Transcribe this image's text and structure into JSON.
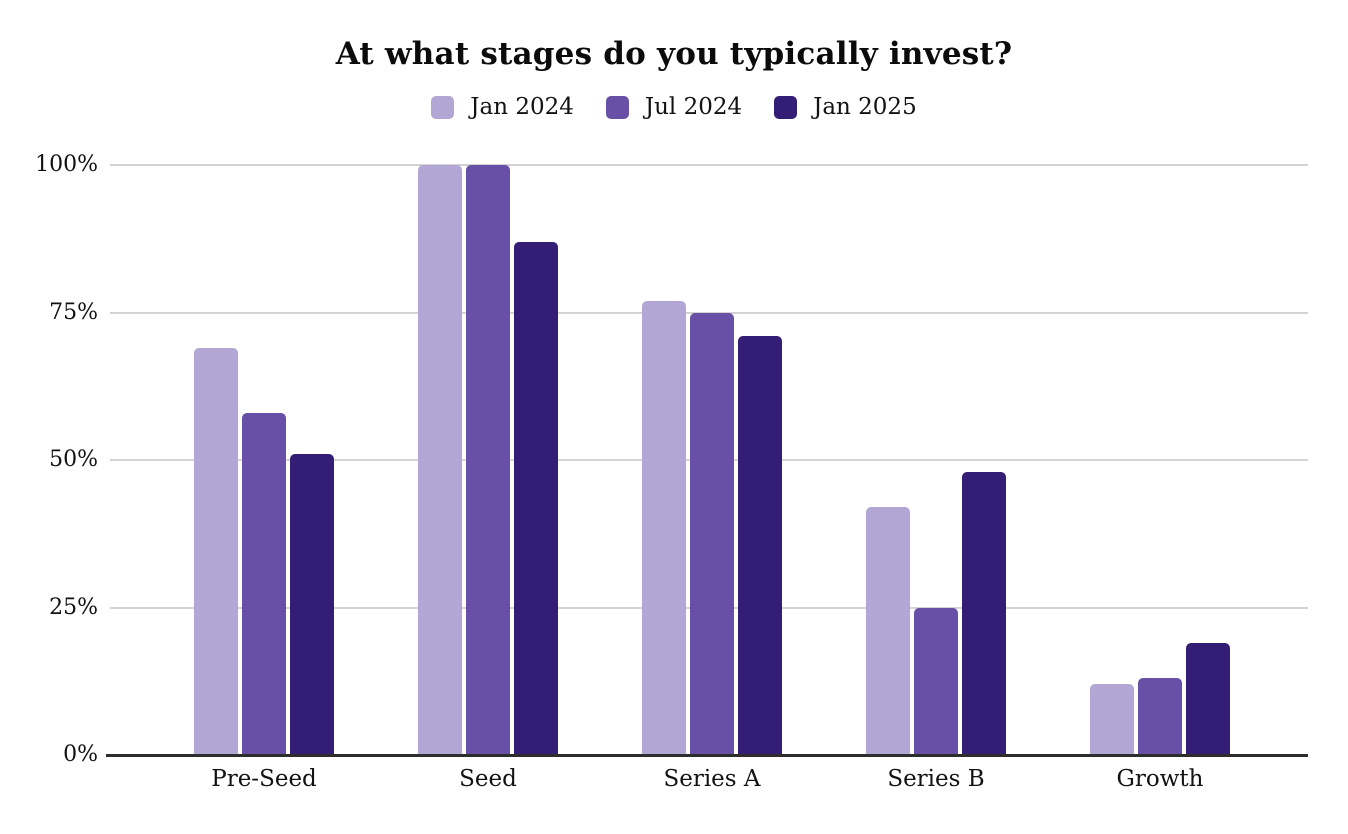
{
  "chart_data": {
    "type": "bar",
    "title": "At what stages do you typically invest?",
    "categories": [
      "Pre-Seed",
      "Seed",
      "Series A",
      "Series B",
      "Growth"
    ],
    "series": [
      {
        "name": "Jan 2024",
        "color": "#b2a6d4",
        "values": [
          69,
          100,
          77,
          42,
          12
        ]
      },
      {
        "name": "Jul 2024",
        "color": "#6750a6",
        "values": [
          58,
          100,
          75,
          25,
          13
        ]
      },
      {
        "name": "Jan 2025",
        "color": "#341d74",
        "values": [
          51,
          87,
          71,
          48,
          19
        ]
      }
    ],
    "value_unit": "%",
    "y_axis": {
      "tick_labels": [
        "0%",
        "25%",
        "50%",
        "75%",
        "100%"
      ],
      "tick_values": [
        0,
        25,
        50,
        75,
        100
      ],
      "min": 0,
      "max": 100
    },
    "grid": true,
    "legend_position": "top",
    "colors": {
      "gridline": "#d3d3d3",
      "axis_line": "#2d2d2d",
      "text": "#121212",
      "background": "#ffffff"
    }
  }
}
